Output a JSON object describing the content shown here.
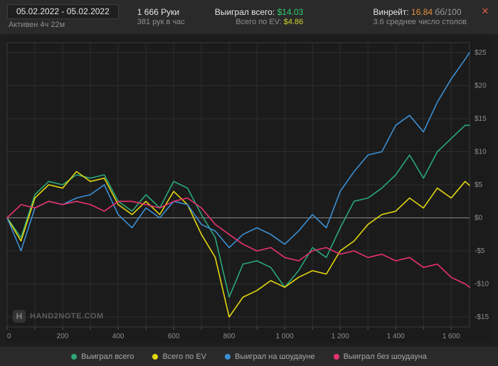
{
  "header": {
    "date_range": "05.02.2022 - 05.02.2022",
    "active_time": "Активен 4ч 22м",
    "hands": "1 666 Руки",
    "hands_per_hour": "381 рук в час",
    "won_label": "Выиграл всего:",
    "won_value": "$14.03",
    "ev_label": "Всего по EV:",
    "ev_value": "$4.86",
    "winrate_label": "Винрейт:",
    "winrate_value": "16.84",
    "winrate_unit": "бб/100",
    "avg_tables": "3.6 среднее число столов",
    "close_glyph": "✕"
  },
  "chart": {
    "logo_letter": "H",
    "watermark": "HAND2NOTE.COM"
  },
  "chart_data": {
    "type": "line",
    "title": "",
    "xlabel": "",
    "ylabel": "",
    "xlim": [
      0,
      1666
    ],
    "ylim": [
      -16.5,
      26.5
    ],
    "grid": true,
    "grid_x_step": 100,
    "legend_position": "bottom",
    "x_ticks": [
      {
        "v": 0,
        "label": "0"
      },
      {
        "v": 200,
        "label": "200"
      },
      {
        "v": 400,
        "label": "400"
      },
      {
        "v": 600,
        "label": "600"
      },
      {
        "v": 800,
        "label": "800"
      },
      {
        "v": 1000,
        "label": "1 000"
      },
      {
        "v": 1200,
        "label": "1 200"
      },
      {
        "v": 1400,
        "label": "1 400"
      },
      {
        "v": 1600,
        "label": "1 600"
      }
    ],
    "y_ticks": [
      {
        "v": 25,
        "label": "$25"
      },
      {
        "v": 20,
        "label": "$20"
      },
      {
        "v": 15,
        "label": "$15"
      },
      {
        "v": 10,
        "label": "$10"
      },
      {
        "v": 5,
        "label": "$5"
      },
      {
        "v": 0,
        "label": "$0"
      },
      {
        "v": -5,
        "label": "-$5"
      },
      {
        "v": -10,
        "label": "-$10"
      },
      {
        "v": -15,
        "label": "-$15"
      }
    ],
    "x": [
      0,
      50,
      100,
      150,
      200,
      250,
      300,
      350,
      400,
      450,
      500,
      550,
      600,
      650,
      700,
      750,
      800,
      850,
      900,
      950,
      1000,
      1050,
      1100,
      1150,
      1200,
      1250,
      1300,
      1350,
      1400,
      1450,
      1500,
      1550,
      1600,
      1650,
      1666
    ],
    "series": [
      {
        "id": "won-total",
        "name": "Выиграл всего",
        "color": "#2aa876",
        "values": [
          0,
          -3,
          3.5,
          5.5,
          5,
          6.5,
          6,
          6.5,
          2.5,
          1,
          3.5,
          1.5,
          5.5,
          4.5,
          0.5,
          -3,
          -12,
          -7,
          -6.5,
          -7.5,
          -10.5,
          -8,
          -4.5,
          -6,
          -1.5,
          2.5,
          3,
          4.5,
          6.5,
          9.5,
          6,
          10,
          12,
          14,
          14
        ]
      },
      {
        "id": "ev-total",
        "name": "Всего по EV",
        "color": "#e3d60e",
        "values": [
          0,
          -3.5,
          3,
          5,
          4.5,
          7,
          5.5,
          6,
          2,
          0.5,
          2.5,
          0.5,
          4,
          2,
          -2.5,
          -6,
          -15,
          -12,
          -11,
          -9.5,
          -10.5,
          -9,
          -8,
          -8.5,
          -5,
          -3.5,
          -1,
          0.5,
          1,
          3,
          1.5,
          4.5,
          3,
          5.5,
          4.9
        ]
      },
      {
        "id": "won-showdown",
        "name": "Выиграл на шоудауне",
        "color": "#3b8fd4",
        "values": [
          0,
          -5,
          1.5,
          2.5,
          2,
          3,
          3.5,
          5,
          0.5,
          -1.5,
          1.5,
          0,
          2.5,
          2,
          -1,
          -2,
          -4.5,
          -2.5,
          -1.5,
          -2.5,
          -4,
          -2,
          0.5,
          -1.5,
          4,
          7,
          9.5,
          10,
          14,
          15.5,
          13,
          17.5,
          21,
          24,
          25
        ]
      },
      {
        "id": "won-nonshowdown",
        "name": "Выиграл без шоудауна",
        "color": "#e8326e",
        "values": [
          0,
          2,
          1.5,
          2.5,
          2,
          2.5,
          2,
          1,
          2.5,
          2.5,
          2,
          1.5,
          2.5,
          3,
          1.5,
          -1,
          -2.5,
          -4,
          -5,
          -4.5,
          -6,
          -6.5,
          -5,
          -4.5,
          -5.5,
          -5,
          -6,
          -5.5,
          -6.5,
          -6,
          -7.5,
          -7,
          -9,
          -10,
          -10.5
        ]
      }
    ]
  }
}
